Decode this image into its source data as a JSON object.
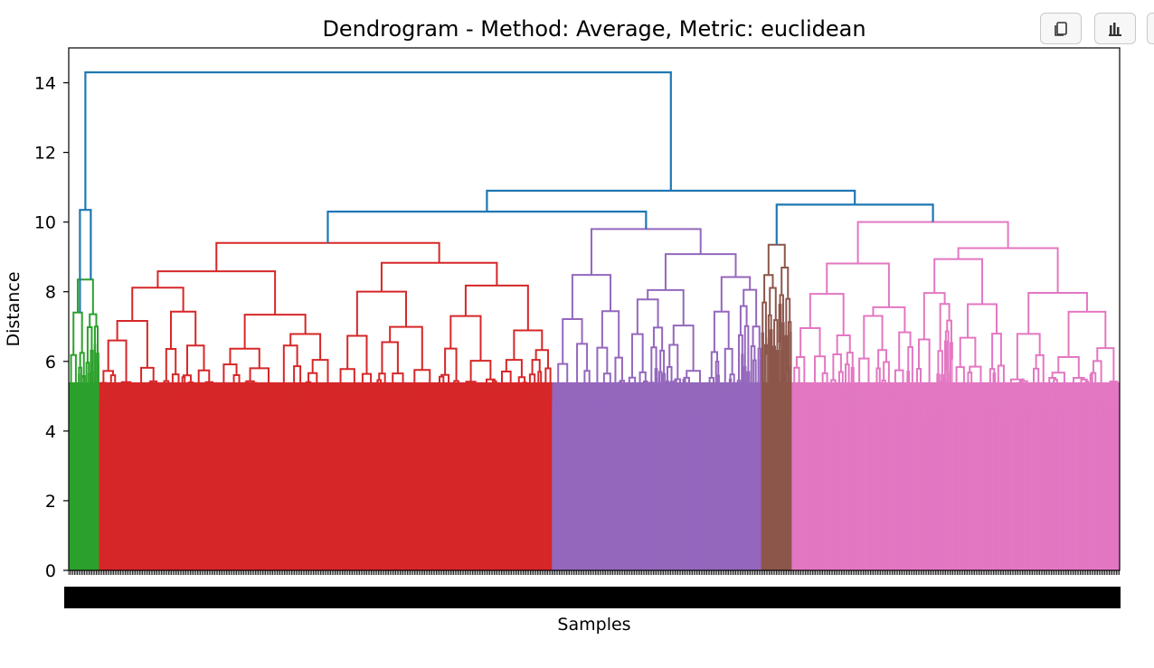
{
  "toolbar": {
    "icons": [
      "copy-icon",
      "bar-chart-icon",
      "more-icon"
    ]
  },
  "chart_data": {
    "type": "dendrogram",
    "title": "Dendrogram - Method: Average, Metric: euclidean",
    "xlabel": "Samples",
    "ylabel": "Distance",
    "ylim": [
      0,
      15
    ],
    "yticks": [
      0,
      2,
      4,
      6,
      8,
      10,
      12,
      14
    ],
    "grid": false,
    "x_tick_labels_note": "",
    "above_threshold_color": "#1f77b4",
    "clusters": [
      {
        "color": "#2ca02c",
        "leaf_fraction": 0.029,
        "root_height": 8.35
      },
      {
        "color": "#d62728",
        "leaf_fraction": 0.431,
        "root_height": 9.4
      },
      {
        "color": "#9467bd",
        "leaf_fraction": 0.199,
        "root_height": 9.8
      },
      {
        "color": "#8c564b",
        "leaf_fraction": 0.029,
        "root_height": 9.35
      },
      {
        "color": "#e377c2",
        "leaf_fraction": 0.312,
        "root_height": 10.0
      }
    ],
    "top_links": [
      {
        "name": "green-merge",
        "height": 10.35,
        "joins": [
          "cluster-0",
          "cluster-0-sub"
        ]
      },
      {
        "name": "red-purple-merge",
        "height": 10.3,
        "joins": [
          "cluster-1",
          "cluster-2"
        ]
      },
      {
        "name": "brown-pink-merge",
        "height": 10.5,
        "joins": [
          "cluster-3",
          "cluster-4"
        ]
      },
      {
        "name": "right-merge",
        "height": 10.9,
        "joins": [
          "red-purple-merge",
          "brown-pink-merge"
        ]
      },
      {
        "name": "root-merge",
        "height": 14.3,
        "joins": [
          "green-merge",
          "right-merge"
        ]
      }
    ]
  }
}
